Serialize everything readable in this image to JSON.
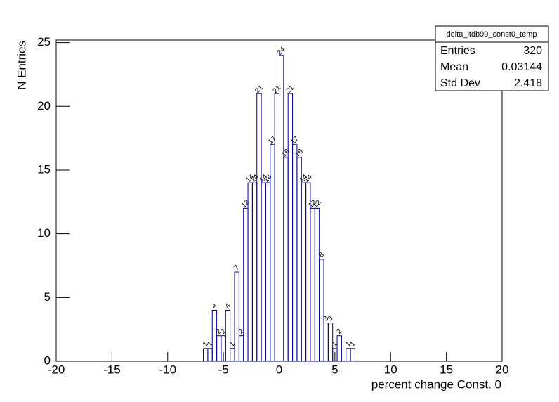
{
  "chart_data": {
    "type": "histogram",
    "xlabel": "percent change Const. 0",
    "ylabel": "N Entries",
    "bins": [
      -6.8,
      -6.4,
      -6.0,
      -5.6,
      -5.2,
      -4.8,
      -4.4,
      -4.0,
      -3.6,
      -3.2,
      -2.8,
      -2.4,
      -2.0,
      -1.6,
      -1.2,
      -0.8,
      -0.4,
      0,
      0.4,
      0.8,
      1.2,
      1.6,
      2.0,
      2.4,
      2.8,
      3.2,
      3.6,
      4.0,
      4.4,
      4.8,
      5.2,
      5.6,
      6.0,
      6.4,
      6.8
    ],
    "counts": [
      1,
      1,
      4,
      2,
      2,
      4,
      1,
      7,
      2,
      12,
      14,
      14,
      21,
      14,
      14,
      17,
      21,
      24,
      16,
      21,
      17,
      16,
      14,
      14,
      12,
      12,
      8,
      3,
      3,
      1,
      2,
      0,
      1,
      1
    ],
    "color": "#000099",
    "xlim": [
      -20,
      20
    ],
    "xticks": [
      -20,
      -15,
      -10,
      -5,
      0,
      5,
      10,
      15,
      20
    ],
    "ylim": [
      0,
      25.2
    ],
    "yticks": [
      0,
      5,
      10,
      15,
      20,
      25
    ],
    "stats": {
      "title": "delta_ltdb99_const0_temp",
      "rows": [
        {
          "label": "Entries",
          "value": 320
        },
        {
          "label": "Mean",
          "value": 0.03144
        },
        {
          "label": "Std Dev",
          "value": 2.418
        }
      ]
    }
  }
}
